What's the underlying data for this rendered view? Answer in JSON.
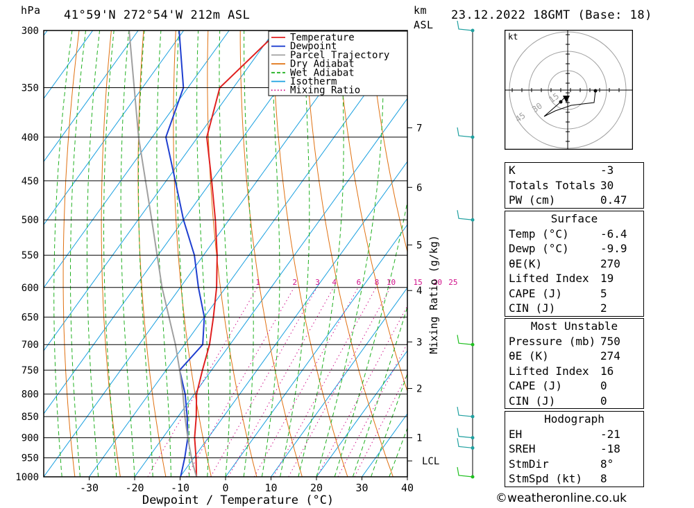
{
  "header": {
    "location": "41°59'N  272°54'W  212m  ASL",
    "datetime": "23.12.2022  18GMT  (Base: 18)",
    "pressure_unit": "hPa",
    "km_unit": "km",
    "asl_unit": "ASL"
  },
  "chart_data": {
    "type": "line",
    "subtype": "skew-T log-P diagram",
    "xlabel": "Dewpoint / Temperature (°C)",
    "ylabel": "hPa",
    "y2label": "Mixing Ratio (g/kg)",
    "xlim": [
      -40,
      40
    ],
    "ylim": [
      1000,
      300
    ],
    "log_scale_y": true,
    "x_ticks": [
      -30,
      -20,
      -10,
      0,
      10,
      20,
      30,
      40
    ],
    "pressure_levels": [
      300,
      350,
      400,
      450,
      500,
      550,
      600,
      650,
      700,
      750,
      800,
      850,
      900,
      950,
      1000
    ],
    "km_ticks": [
      {
        "label": "7",
        "p": 390
      },
      {
        "label": "6",
        "p": 458
      },
      {
        "label": "5",
        "p": 535
      },
      {
        "label": "4",
        "p": 605
      },
      {
        "label": "3",
        "p": 695
      },
      {
        "label": "2",
        "p": 788
      },
      {
        "label": "1",
        "p": 900
      },
      {
        "label": "LCL",
        "p": 958
      }
    ],
    "mixing_ratio_labels": [
      "1",
      "2",
      "3",
      "4",
      "6",
      "8",
      "10",
      "15",
      "20",
      "25"
    ],
    "legend": {
      "placement": "top-right",
      "entries": [
        {
          "name": "Temperature",
          "color": "#e02020",
          "style": "solid"
        },
        {
          "name": "Dewpoint",
          "color": "#1f3fd0",
          "style": "solid"
        },
        {
          "name": "Parcel Trajectory",
          "color": "#a0a0a0",
          "style": "solid"
        },
        {
          "name": "Dry Adiabat",
          "color": "#e07010",
          "style": "solid"
        },
        {
          "name": "Wet Adiabat",
          "color": "#20b020",
          "style": "dashed"
        },
        {
          "name": "Isotherm",
          "color": "#1aa0e0",
          "style": "solid"
        },
        {
          "name": "Mixing Ratio",
          "color": "#d0108a",
          "style": "dotted"
        }
      ]
    },
    "series": [
      {
        "name": "Temperature",
        "color": "#e02020",
        "points": [
          [
            1000,
            -6.4
          ],
          [
            950,
            -9.5
          ],
          [
            900,
            -13
          ],
          [
            850,
            -16
          ],
          [
            800,
            -19.5
          ],
          [
            750,
            -22
          ],
          [
            700,
            -24.5
          ],
          [
            650,
            -28
          ],
          [
            600,
            -32
          ],
          [
            550,
            -37
          ],
          [
            500,
            -43
          ],
          [
            450,
            -50
          ],
          [
            400,
            -58
          ],
          [
            350,
            -63
          ],
          [
            300,
            -59
          ]
        ]
      },
      {
        "name": "Dewpoint",
        "color": "#1f3fd0",
        "points": [
          [
            1000,
            -9.9
          ],
          [
            950,
            -12
          ],
          [
            900,
            -14.5
          ],
          [
            850,
            -18
          ],
          [
            800,
            -22
          ],
          [
            750,
            -27
          ],
          [
            700,
            -26
          ],
          [
            650,
            -30
          ],
          [
            600,
            -36
          ],
          [
            550,
            -42
          ],
          [
            500,
            -50
          ],
          [
            450,
            -58
          ],
          [
            400,
            -67
          ],
          [
            350,
            -71
          ],
          [
            300,
            -81
          ]
        ]
      },
      {
        "name": "Parcel Trajectory",
        "color": "#a0a0a0",
        "points": [
          [
            1000,
            -6.4
          ],
          [
            958,
            -9.9
          ],
          [
            900,
            -14.5
          ],
          [
            850,
            -18.5
          ],
          [
            800,
            -22.5
          ],
          [
            750,
            -27
          ],
          [
            700,
            -32
          ],
          [
            600,
            -44
          ],
          [
            500,
            -57
          ],
          [
            400,
            -73
          ],
          [
            300,
            -92
          ]
        ]
      }
    ]
  },
  "wind_profile": {
    "levels": [
      {
        "p": 300,
        "color": "#20a0a0"
      },
      {
        "p": 400,
        "color": "#20a0a0"
      },
      {
        "p": 500,
        "color": "#20a0a0"
      },
      {
        "p": 700,
        "color": "#20c020"
      },
      {
        "p": 850,
        "color": "#20a0a0"
      },
      {
        "p": 900,
        "color": "#20a0a0"
      },
      {
        "p": 925,
        "color": "#20a0a0"
      },
      {
        "p": 1000,
        "color": "#20c020"
      }
    ]
  },
  "hodograph": {
    "unit": "kt",
    "ring_labels": [
      "15",
      "30",
      "45"
    ]
  },
  "indices": {
    "general": [
      {
        "label": "K",
        "value": "-3"
      },
      {
        "label": "Totals Totals",
        "value": "30"
      },
      {
        "label": "PW (cm)",
        "value": "0.47"
      }
    ],
    "surface_title": "Surface",
    "surface": [
      {
        "label": "Temp (°C)",
        "value": "-6.4"
      },
      {
        "label": "Dewp (°C)",
        "value": "-9.9"
      },
      {
        "label": "θE(K)",
        "value": "270"
      },
      {
        "label": "Lifted Index",
        "value": "19"
      },
      {
        "label": "CAPE (J)",
        "value": "5"
      },
      {
        "label": "CIN (J)",
        "value": "2"
      }
    ],
    "unstable_title": "Most Unstable",
    "unstable": [
      {
        "label": "Pressure (mb)",
        "value": "750"
      },
      {
        "label": "θE (K)",
        "value": "274"
      },
      {
        "label": "Lifted Index",
        "value": "16"
      },
      {
        "label": "CAPE (J)",
        "value": "0"
      },
      {
        "label": "CIN (J)",
        "value": "0"
      }
    ],
    "hodo_title": "Hodograph",
    "hodo": [
      {
        "label": "EH",
        "value": "-21"
      },
      {
        "label": "SREH",
        "value": "-18"
      },
      {
        "label": "StmDir",
        "value": "8°"
      },
      {
        "label": "StmSpd (kt)",
        "value": "8"
      }
    ]
  },
  "footer": {
    "copyright": "©weatheronline.co.uk"
  }
}
